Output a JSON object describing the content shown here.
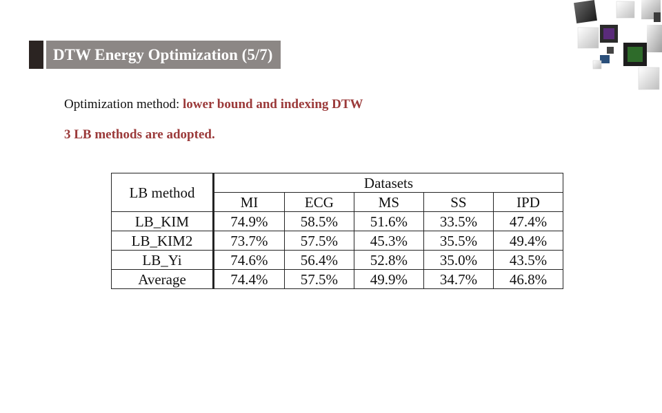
{
  "slide": {
    "title": "DTW Energy Optimization (5/7)",
    "line1_prefix": "Optimization method: ",
    "line1_highlight": "lower bound and indexing DTW",
    "line2": "3 LB methods are adopted."
  },
  "table": {
    "method_header": "LB  method",
    "group_header": "Datasets",
    "columns": [
      "MI",
      "ECG",
      "MS",
      "SS",
      "IPD"
    ],
    "rows": [
      {
        "method": "LB_KIM",
        "values": [
          "74.9%",
          "58.5%",
          "51.6%",
          "33.5%",
          "47.4%"
        ]
      },
      {
        "method": "LB_KIM2",
        "values": [
          "73.7%",
          "57.5%",
          "45.3%",
          "35.5%",
          "49.4%"
        ]
      },
      {
        "method": "LB_Yi",
        "values": [
          "74.6%",
          "56.4%",
          "52.8%",
          "35.0%",
          "43.5%"
        ]
      },
      {
        "method": "Average",
        "values": [
          "74.4%",
          "57.5%",
          "49.9%",
          "34.7%",
          "46.8%"
        ]
      }
    ]
  },
  "colors": {
    "title_bg": "#8c8785",
    "title_accent": "#2b2422",
    "highlight_text": "#9b3a3a"
  },
  "icons": {
    "decoration": "decorative-cubes-icon"
  }
}
